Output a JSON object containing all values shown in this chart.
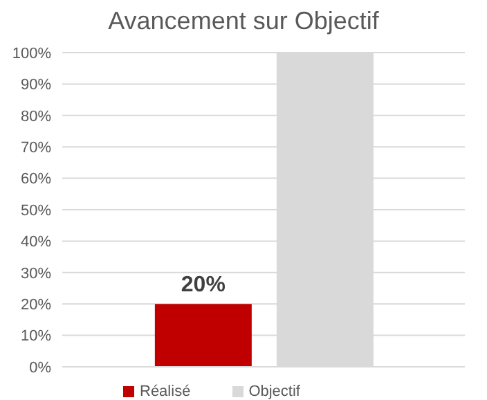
{
  "chart_data": {
    "type": "bar",
    "title": "Avancement sur Objectif",
    "categories": [
      null
    ],
    "series": [
      {
        "name": "Réalisé",
        "color": "#c00000",
        "values": [
          20
        ],
        "value_labels": [
          "20%"
        ]
      },
      {
        "name": "Objectif",
        "color": "#d9d9d9",
        "values": [
          100
        ]
      }
    ],
    "ylim": [
      0,
      100
    ],
    "yticks": [
      {
        "value": 0,
        "label": "0%"
      },
      {
        "value": 10,
        "label": "10%"
      },
      {
        "value": 20,
        "label": "20%"
      },
      {
        "value": 30,
        "label": "30%"
      },
      {
        "value": 40,
        "label": "40%"
      },
      {
        "value": 50,
        "label": "50%"
      },
      {
        "value": 60,
        "label": "60%"
      },
      {
        "value": 70,
        "label": "70%"
      },
      {
        "value": 80,
        "label": "80%"
      },
      {
        "value": 90,
        "label": "90%"
      },
      {
        "value": 100,
        "label": "100%"
      }
    ],
    "grid": "y",
    "legend": "bottom"
  }
}
